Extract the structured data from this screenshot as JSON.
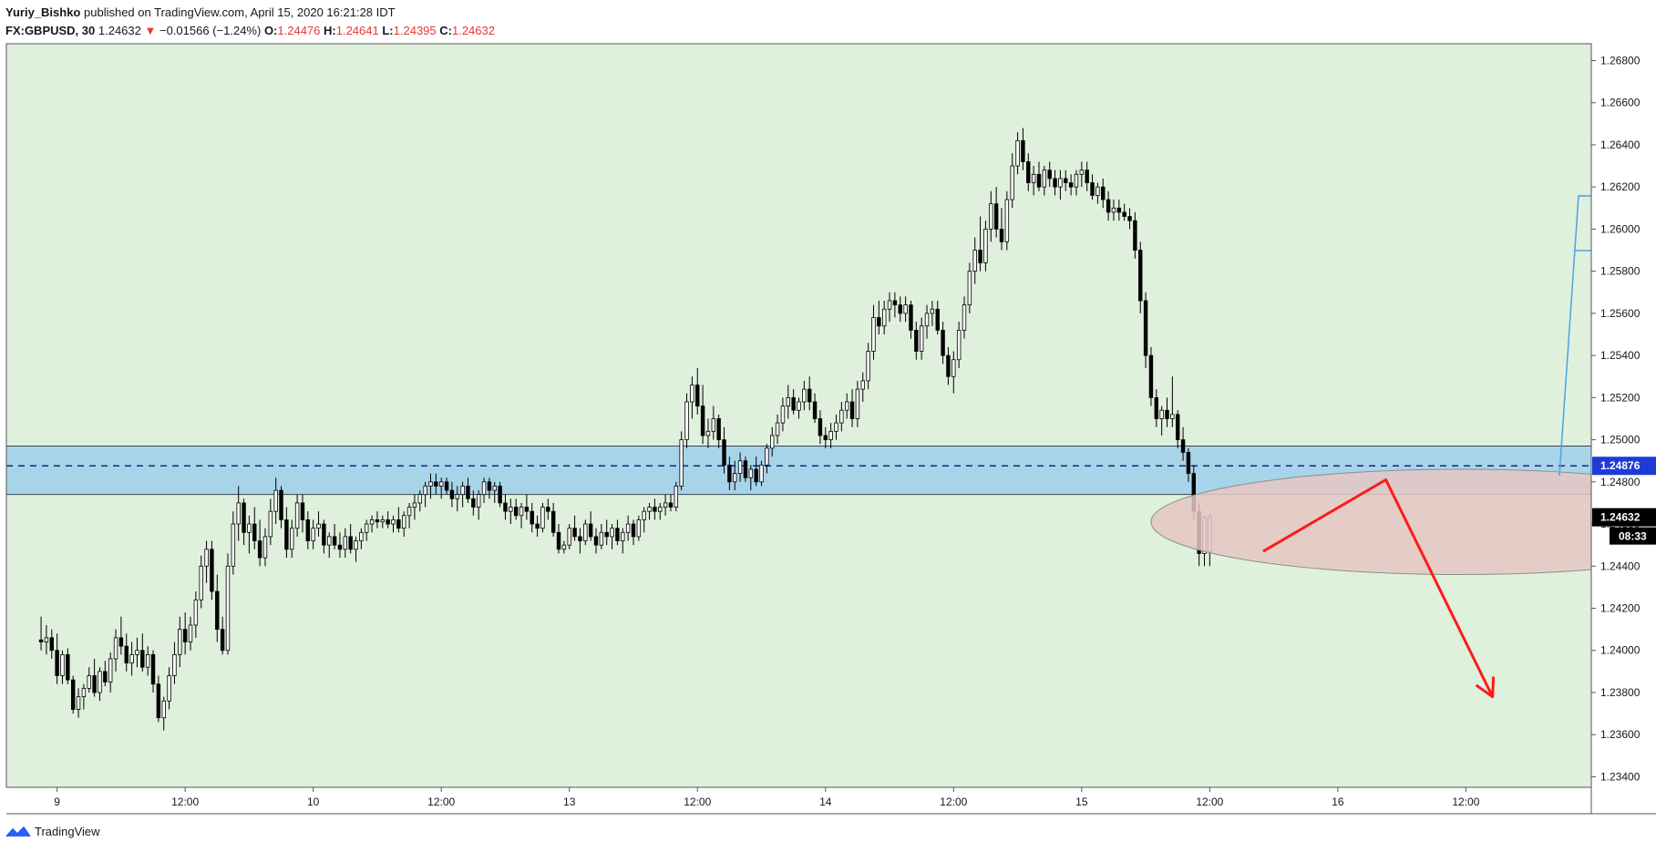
{
  "header": {
    "author": "Yuriy_Bishko",
    "published_text": "published on TradingView.com, April 15, 2020 16:21:28 IDT",
    "symbol": "FX:GBPUSD, 30",
    "last": "1.24632",
    "change_arrow": "▼",
    "change": "−0.01566 (−1.24%)",
    "o_label": "O:",
    "o_value": "1.24476",
    "h_label": "H:",
    "h_value": "1.24641",
    "l_label": "L:",
    "l_value": "1.24395",
    "c_label": "C:",
    "c_value": "1.24632"
  },
  "footer": {
    "brand": "TradingView",
    "logo_icon": "tradingview-logo-icon"
  },
  "colors": {
    "background": "#dff0dc",
    "zone_fill": "#a8d4ea",
    "zone_line": "#1a237e",
    "ellipse_fill": "#e6c7c3",
    "arrow": "#ff1a1a",
    "callout_line": "#4aa3e0",
    "price_tag": "#1e3bd6"
  },
  "chart_data": {
    "type": "candlestick",
    "ylim": [
      1.2335,
      1.2688
    ],
    "y_ticks": [
      1.268,
      1.266,
      1.264,
      1.262,
      1.26,
      1.258,
      1.256,
      1.254,
      1.252,
      1.25,
      1.248,
      1.246,
      1.244,
      1.242,
      1.24,
      1.238,
      1.236,
      1.234
    ],
    "y_tick_labels": [
      "1.26800",
      "1.26600",
      "1.26400",
      "1.26200",
      "1.26000",
      "1.25800",
      "1.25600",
      "1.25400",
      "1.25200",
      "1.25000",
      "1.24800",
      "1.24600",
      "1.24400",
      "1.24200",
      "1.24000",
      "1.23800",
      "1.23600",
      "1.23400"
    ],
    "x_labels": [
      "9",
      "12:00",
      "10",
      "12:00",
      "13",
      "12:00",
      "14",
      "12:00",
      "15",
      "12:00",
      "16",
      "12:00"
    ],
    "x_label_bars": [
      3,
      27,
      51,
      75,
      99,
      123,
      147,
      171,
      195,
      219,
      243,
      267
    ],
    "x_range_bars": [
      -6.5,
      290.5
    ],
    "price_zone": {
      "top": 1.2497,
      "bottom": 1.2474
    },
    "zone_level": 1.24876,
    "zone_level_label": "1.24876",
    "current_price": 1.24632,
    "current_price_label": "1.24632",
    "countdown": "08:33",
    "forecast_zone": {
      "center_bar": 266,
      "center_price": 1.2461,
      "half_width_bars": 58,
      "half_height_price": 0.0025
    },
    "forecast_path": [
      {
        "bar": 229,
        "price": 1.2447
      },
      {
        "bar": 252,
        "price": 1.2481
      },
      {
        "bar": 272,
        "price": 1.2378
      }
    ],
    "candles": [
      [
        1.2405,
        1.2416,
        1.24,
        1.2404
      ],
      [
        1.2404,
        1.2412,
        1.2398,
        1.2406
      ],
      [
        1.2406,
        1.241,
        1.2396,
        1.24
      ],
      [
        1.24,
        1.2408,
        1.2384,
        1.2388
      ],
      [
        1.2388,
        1.24,
        1.2384,
        1.2398
      ],
      [
        1.2398,
        1.2401,
        1.2384,
        1.2386
      ],
      [
        1.2386,
        1.2388,
        1.237,
        1.2372
      ],
      [
        1.2372,
        1.2382,
        1.2368,
        1.2378
      ],
      [
        1.2378,
        1.2384,
        1.2372,
        1.2382
      ],
      [
        1.2382,
        1.2392,
        1.238,
        1.2388
      ],
      [
        1.2388,
        1.2396,
        1.2378,
        1.238
      ],
      [
        1.238,
        1.2392,
        1.2376,
        1.239
      ],
      [
        1.239,
        1.2395,
        1.2383,
        1.2385
      ],
      [
        1.2385,
        1.2399,
        1.238,
        1.2396
      ],
      [
        1.2396,
        1.241,
        1.239,
        1.2406
      ],
      [
        1.2406,
        1.2416,
        1.2398,
        1.2402
      ],
      [
        1.2402,
        1.2408,
        1.239,
        1.2394
      ],
      [
        1.2394,
        1.2404,
        1.2388,
        1.2398
      ],
      [
        1.2398,
        1.2406,
        1.2392,
        1.24
      ],
      [
        1.24,
        1.2408,
        1.239,
        1.2392
      ],
      [
        1.2392,
        1.2402,
        1.2388,
        1.2398
      ],
      [
        1.2398,
        1.24,
        1.238,
        1.2384
      ],
      [
        1.2384,
        1.2388,
        1.2366,
        1.2368
      ],
      [
        1.2368,
        1.2378,
        1.2362,
        1.2376
      ],
      [
        1.2376,
        1.2392,
        1.2372,
        1.2388
      ],
      [
        1.2388,
        1.2404,
        1.2384,
        1.2398
      ],
      [
        1.2398,
        1.2416,
        1.2392,
        1.241
      ],
      [
        1.241,
        1.2418,
        1.2398,
        1.2404
      ],
      [
        1.2404,
        1.2416,
        1.24,
        1.2412
      ],
      [
        1.2412,
        1.2428,
        1.2406,
        1.2424
      ],
      [
        1.2424,
        1.2445,
        1.242,
        1.244
      ],
      [
        1.244,
        1.2452,
        1.2432,
        1.2448
      ],
      [
        1.2448,
        1.2452,
        1.2424,
        1.2428
      ],
      [
        1.2428,
        1.2436,
        1.2404,
        1.241
      ],
      [
        1.241,
        1.2416,
        1.2398,
        1.24
      ],
      [
        1.24,
        1.2446,
        1.2398,
        1.244
      ],
      [
        1.244,
        1.2466,
        1.2436,
        1.246
      ],
      [
        1.246,
        1.2478,
        1.2452,
        1.247
      ],
      [
        1.247,
        1.2472,
        1.245,
        1.2456
      ],
      [
        1.2456,
        1.2464,
        1.2446,
        1.246
      ],
      [
        1.246,
        1.2468,
        1.2448,
        1.2452
      ],
      [
        1.2452,
        1.2462,
        1.244,
        1.2444
      ],
      [
        1.2444,
        1.2458,
        1.244,
        1.2454
      ],
      [
        1.2454,
        1.2472,
        1.245,
        1.2466
      ],
      [
        1.2466,
        1.2482,
        1.246,
        1.2476
      ],
      [
        1.2476,
        1.2478,
        1.2458,
        1.2462
      ],
      [
        1.2462,
        1.2468,
        1.2444,
        1.2448
      ],
      [
        1.2448,
        1.2462,
        1.2444,
        1.2458
      ],
      [
        1.2458,
        1.2474,
        1.2454,
        1.247
      ],
      [
        1.247,
        1.2474,
        1.2456,
        1.2462
      ],
      [
        1.2462,
        1.2466,
        1.2448,
        1.2452
      ],
      [
        1.2452,
        1.2462,
        1.2448,
        1.2458
      ],
      [
        1.2458,
        1.2466,
        1.2454,
        1.246
      ],
      [
        1.246,
        1.2462,
        1.2446,
        1.245
      ],
      [
        1.245,
        1.2456,
        1.2444,
        1.2454
      ],
      [
        1.2454,
        1.246,
        1.2448,
        1.245
      ],
      [
        1.245,
        1.2456,
        1.2444,
        1.2448
      ],
      [
        1.2448,
        1.2458,
        1.2444,
        1.2454
      ],
      [
        1.2454,
        1.246,
        1.2446,
        1.2448
      ],
      [
        1.2448,
        1.2454,
        1.2442,
        1.2452
      ],
      [
        1.2452,
        1.2458,
        1.2448,
        1.2456
      ],
      [
        1.2456,
        1.2462,
        1.2452,
        1.246
      ],
      [
        1.246,
        1.2464,
        1.2456,
        1.2462
      ],
      [
        1.2462,
        1.2466,
        1.2458,
        1.2461
      ],
      [
        1.2461,
        1.2464,
        1.2458,
        1.2462
      ],
      [
        1.2462,
        1.2466,
        1.2458,
        1.246
      ],
      [
        1.246,
        1.2464,
        1.2456,
        1.2462
      ],
      [
        1.2462,
        1.2468,
        1.2456,
        1.2458
      ],
      [
        1.2458,
        1.2466,
        1.2454,
        1.2464
      ],
      [
        1.2464,
        1.247,
        1.2458,
        1.2468
      ],
      [
        1.2468,
        1.2474,
        1.2462,
        1.247
      ],
      [
        1.247,
        1.2476,
        1.2466,
        1.2474
      ],
      [
        1.2474,
        1.248,
        1.2468,
        1.2478
      ],
      [
        1.2478,
        1.2484,
        1.2472,
        1.248
      ],
      [
        1.248,
        1.2484,
        1.2474,
        1.2478
      ],
      [
        1.2478,
        1.2482,
        1.2472,
        1.248
      ],
      [
        1.248,
        1.2482,
        1.2474,
        1.2476
      ],
      [
        1.2476,
        1.248,
        1.2468,
        1.2472
      ],
      [
        1.2472,
        1.2478,
        1.2466,
        1.2474
      ],
      [
        1.2474,
        1.248,
        1.2468,
        1.2478
      ],
      [
        1.2478,
        1.2482,
        1.247,
        1.2472
      ],
      [
        1.2472,
        1.2476,
        1.2464,
        1.2468
      ],
      [
        1.2468,
        1.2476,
        1.2462,
        1.2474
      ],
      [
        1.2474,
        1.2482,
        1.247,
        1.248
      ],
      [
        1.248,
        1.2482,
        1.2472,
        1.2476
      ],
      [
        1.2476,
        1.248,
        1.247,
        1.2478
      ],
      [
        1.2478,
        1.248,
        1.2468,
        1.247
      ],
      [
        1.247,
        1.2474,
        1.2462,
        1.2466
      ],
      [
        1.2466,
        1.2472,
        1.246,
        1.2468
      ],
      [
        1.2468,
        1.2472,
        1.2462,
        1.2464
      ],
      [
        1.2464,
        1.247,
        1.2458,
        1.2468
      ],
      [
        1.2468,
        1.2474,
        1.2462,
        1.2466
      ],
      [
        1.2466,
        1.247,
        1.2456,
        1.246
      ],
      [
        1.246,
        1.2464,
        1.2454,
        1.2458
      ],
      [
        1.2458,
        1.247,
        1.2456,
        1.2468
      ],
      [
        1.2468,
        1.2472,
        1.2462,
        1.2466
      ],
      [
        1.2466,
        1.247,
        1.2454,
        1.2456
      ],
      [
        1.2456,
        1.246,
        1.2446,
        1.2448
      ],
      [
        1.2448,
        1.2452,
        1.2446,
        1.245
      ],
      [
        1.245,
        1.246,
        1.2448,
        1.2458
      ],
      [
        1.2458,
        1.2464,
        1.2452,
        1.2454
      ],
      [
        1.2454,
        1.2458,
        1.2446,
        1.2452
      ],
      [
        1.2452,
        1.2462,
        1.245,
        1.246
      ],
      [
        1.246,
        1.2466,
        1.2452,
        1.2454
      ],
      [
        1.2454,
        1.2458,
        1.2446,
        1.245
      ],
      [
        1.245,
        1.246,
        1.2448,
        1.2456
      ],
      [
        1.2456,
        1.2462,
        1.245,
        1.2454
      ],
      [
        1.2454,
        1.246,
        1.2448,
        1.2458
      ],
      [
        1.2458,
        1.2462,
        1.245,
        1.2452
      ],
      [
        1.2452,
        1.2458,
        1.2446,
        1.2456
      ],
      [
        1.2456,
        1.2464,
        1.2452,
        1.246
      ],
      [
        1.246,
        1.2462,
        1.245,
        1.2454
      ],
      [
        1.2454,
        1.2464,
        1.2452,
        1.2462
      ],
      [
        1.2462,
        1.2468,
        1.2456,
        1.2466
      ],
      [
        1.2466,
        1.247,
        1.2462,
        1.2468
      ],
      [
        1.2468,
        1.2472,
        1.2462,
        1.2466
      ],
      [
        1.2466,
        1.247,
        1.2462,
        1.2468
      ],
      [
        1.2468,
        1.2474,
        1.2464,
        1.247
      ],
      [
        1.247,
        1.2474,
        1.2466,
        1.2468
      ],
      [
        1.2468,
        1.248,
        1.2466,
        1.2478
      ],
      [
        1.2478,
        1.2504,
        1.2476,
        1.25
      ],
      [
        1.25,
        1.2522,
        1.2496,
        1.2518
      ],
      [
        1.2518,
        1.253,
        1.251,
        1.2526
      ],
      [
        1.2526,
        1.2534,
        1.2512,
        1.2516
      ],
      [
        1.2516,
        1.2526,
        1.2498,
        1.2502
      ],
      [
        1.2502,
        1.251,
        1.2496,
        1.2504
      ],
      [
        1.2504,
        1.2516,
        1.25,
        1.251
      ],
      [
        1.251,
        1.2512,
        1.2496,
        1.25
      ],
      [
        1.25,
        1.2506,
        1.2484,
        1.2488
      ],
      [
        1.2488,
        1.2492,
        1.2476,
        1.248
      ],
      [
        1.248,
        1.249,
        1.2476,
        1.2484
      ],
      [
        1.2484,
        1.2494,
        1.248,
        1.249
      ],
      [
        1.249,
        1.2492,
        1.248,
        1.2482
      ],
      [
        1.2482,
        1.2488,
        1.2476,
        1.2486
      ],
      [
        1.2486,
        1.2492,
        1.2478,
        1.248
      ],
      [
        1.248,
        1.249,
        1.2478,
        1.2488
      ],
      [
        1.2488,
        1.2498,
        1.2484,
        1.2496
      ],
      [
        1.2496,
        1.2506,
        1.2492,
        1.2502
      ],
      [
        1.2502,
        1.2512,
        1.2498,
        1.2508
      ],
      [
        1.2508,
        1.252,
        1.2504,
        1.2516
      ],
      [
        1.2516,
        1.2526,
        1.251,
        1.252
      ],
      [
        1.252,
        1.2524,
        1.2512,
        1.2514
      ],
      [
        1.2514,
        1.252,
        1.251,
        1.2518
      ],
      [
        1.2518,
        1.2528,
        1.2514,
        1.2524
      ],
      [
        1.2524,
        1.253,
        1.2514,
        1.2518
      ],
      [
        1.2518,
        1.2522,
        1.2508,
        1.251
      ],
      [
        1.251,
        1.2514,
        1.2498,
        1.2502
      ],
      [
        1.2502,
        1.2506,
        1.2496,
        1.25
      ],
      [
        1.25,
        1.2508,
        1.2496,
        1.2504
      ],
      [
        1.2504,
        1.2512,
        1.25,
        1.2508
      ],
      [
        1.2508,
        1.2518,
        1.2504,
        1.2514
      ],
      [
        1.2514,
        1.2522,
        1.251,
        1.2518
      ],
      [
        1.2518,
        1.2524,
        1.2506,
        1.251
      ],
      [
        1.251,
        1.2528,
        1.2506,
        1.2524
      ],
      [
        1.2524,
        1.2532,
        1.2518,
        1.2528
      ],
      [
        1.2528,
        1.2546,
        1.2524,
        1.2542
      ],
      [
        1.2542,
        1.2564,
        1.2538,
        1.2558
      ],
      [
        1.2558,
        1.2566,
        1.255,
        1.2554
      ],
      [
        1.2554,
        1.2566,
        1.255,
        1.2562
      ],
      [
        1.2562,
        1.257,
        1.2556,
        1.2566
      ],
      [
        1.2566,
        1.257,
        1.2558,
        1.2564
      ],
      [
        1.2564,
        1.2568,
        1.2556,
        1.256
      ],
      [
        1.256,
        1.2568,
        1.2556,
        1.2564
      ],
      [
        1.2564,
        1.2566,
        1.2548,
        1.2552
      ],
      [
        1.2552,
        1.2556,
        1.2538,
        1.2542
      ],
      [
        1.2542,
        1.2558,
        1.2538,
        1.2554
      ],
      [
        1.2554,
        1.2564,
        1.2548,
        1.256
      ],
      [
        1.256,
        1.2566,
        1.2554,
        1.2562
      ],
      [
        1.2562,
        1.2566,
        1.255,
        1.2552
      ],
      [
        1.2552,
        1.2556,
        1.2536,
        1.254
      ],
      [
        1.254,
        1.2544,
        1.2526,
        1.253
      ],
      [
        1.253,
        1.2542,
        1.2522,
        1.2538
      ],
      [
        1.2538,
        1.2556,
        1.2534,
        1.2552
      ],
      [
        1.2552,
        1.2568,
        1.2548,
        1.2564
      ],
      [
        1.2564,
        1.2584,
        1.256,
        1.258
      ],
      [
        1.258,
        1.2596,
        1.2574,
        1.259
      ],
      [
        1.259,
        1.2606,
        1.258,
        1.2584
      ],
      [
        1.2584,
        1.2604,
        1.258,
        1.26
      ],
      [
        1.26,
        1.2618,
        1.2594,
        1.2612
      ],
      [
        1.2612,
        1.262,
        1.2596,
        1.26
      ],
      [
        1.26,
        1.261,
        1.259,
        1.2594
      ],
      [
        1.2594,
        1.2618,
        1.259,
        1.2614
      ],
      [
        1.2614,
        1.2636,
        1.261,
        1.263
      ],
      [
        1.263,
        1.2646,
        1.2626,
        1.2642
      ],
      [
        1.2642,
        1.2648,
        1.2628,
        1.2632
      ],
      [
        1.2632,
        1.2636,
        1.2618,
        1.2622
      ],
      [
        1.2622,
        1.263,
        1.2616,
        1.2626
      ],
      [
        1.2626,
        1.2632,
        1.2618,
        1.262
      ],
      [
        1.262,
        1.263,
        1.2616,
        1.2628
      ],
      [
        1.2628,
        1.2632,
        1.262,
        1.2624
      ],
      [
        1.2624,
        1.2628,
        1.2616,
        1.262
      ],
      [
        1.262,
        1.2628,
        1.2614,
        1.2624
      ],
      [
        1.2624,
        1.2628,
        1.2618,
        1.2622
      ],
      [
        1.2622,
        1.2626,
        1.2616,
        1.262
      ],
      [
        1.262,
        1.2628,
        1.2616,
        1.2626
      ],
      [
        1.2626,
        1.2632,
        1.262,
        1.2628
      ],
      [
        1.2628,
        1.2632,
        1.2618,
        1.2622
      ],
      [
        1.2622,
        1.2626,
        1.2614,
        1.2616
      ],
      [
        1.2616,
        1.2622,
        1.2612,
        1.262
      ],
      [
        1.262,
        1.2624,
        1.261,
        1.2614
      ],
      [
        1.2614,
        1.2618,
        1.2604,
        1.2608
      ],
      [
        1.2608,
        1.2614,
        1.2604,
        1.261
      ],
      [
        1.261,
        1.2614,
        1.2604,
        1.2608
      ],
      [
        1.2608,
        1.2612,
        1.2604,
        1.2606
      ],
      [
        1.2606,
        1.261,
        1.26,
        1.2604
      ],
      [
        1.2604,
        1.2608,
        1.2586,
        1.259
      ],
      [
        1.259,
        1.2594,
        1.256,
        1.2566
      ],
      [
        1.2566,
        1.257,
        1.2534,
        1.254
      ],
      [
        1.254,
        1.2544,
        1.2516,
        1.252
      ],
      [
        1.252,
        1.2524,
        1.2506,
        1.251
      ],
      [
        1.251,
        1.2516,
        1.2502,
        1.2514
      ],
      [
        1.2514,
        1.252,
        1.2506,
        1.251
      ],
      [
        1.251,
        1.253,
        1.2506,
        1.2512
      ],
      [
        1.2512,
        1.2514,
        1.2496,
        1.25
      ],
      [
        1.25,
        1.2506,
        1.249,
        1.2494
      ],
      [
        1.2494,
        1.2496,
        1.248,
        1.2484
      ],
      [
        1.2484,
        1.2488,
        1.2462,
        1.2466
      ],
      [
        1.2466,
        1.247,
        1.244,
        1.2446
      ],
      [
        1.2446,
        1.2464,
        1.244,
        1.2463
      ],
      [
        1.2447,
        1.2465,
        1.244,
        1.2463
      ]
    ]
  }
}
